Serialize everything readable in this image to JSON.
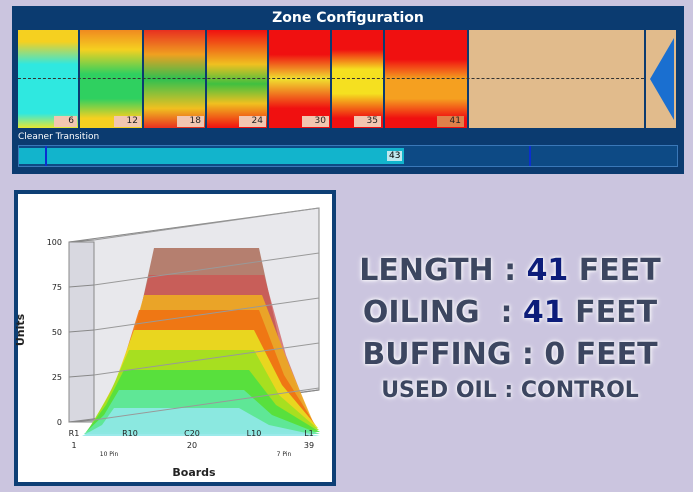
{
  "header": {
    "title": "Zone Configuration"
  },
  "zones": {
    "labels": [
      6,
      12,
      18,
      24,
      30,
      35,
      41
    ]
  },
  "cleaner": {
    "label": "Cleaner Transition",
    "value": 43
  },
  "chart": {
    "y_label": "Units",
    "yticks": [
      0,
      25,
      50,
      75,
      100
    ],
    "ylim": [
      0,
      100
    ],
    "x_labels": [
      "R1",
      "R10",
      "C20",
      "L10",
      "L1"
    ],
    "x_numbers": [
      1,
      20,
      39
    ],
    "pin_labels": [
      "10 Pin",
      "7 Pin"
    ],
    "x_label": "Boards"
  },
  "stats": [
    {
      "label": "LENGTH :",
      "value": 41,
      "unit": "FEET"
    },
    {
      "label": "OILING  :",
      "value": 41,
      "unit": "FEET"
    },
    {
      "label": "BUFFING :",
      "value": 0,
      "unit": "FEET"
    },
    {
      "label": "USED OIL : CONTROL"
    }
  ]
}
